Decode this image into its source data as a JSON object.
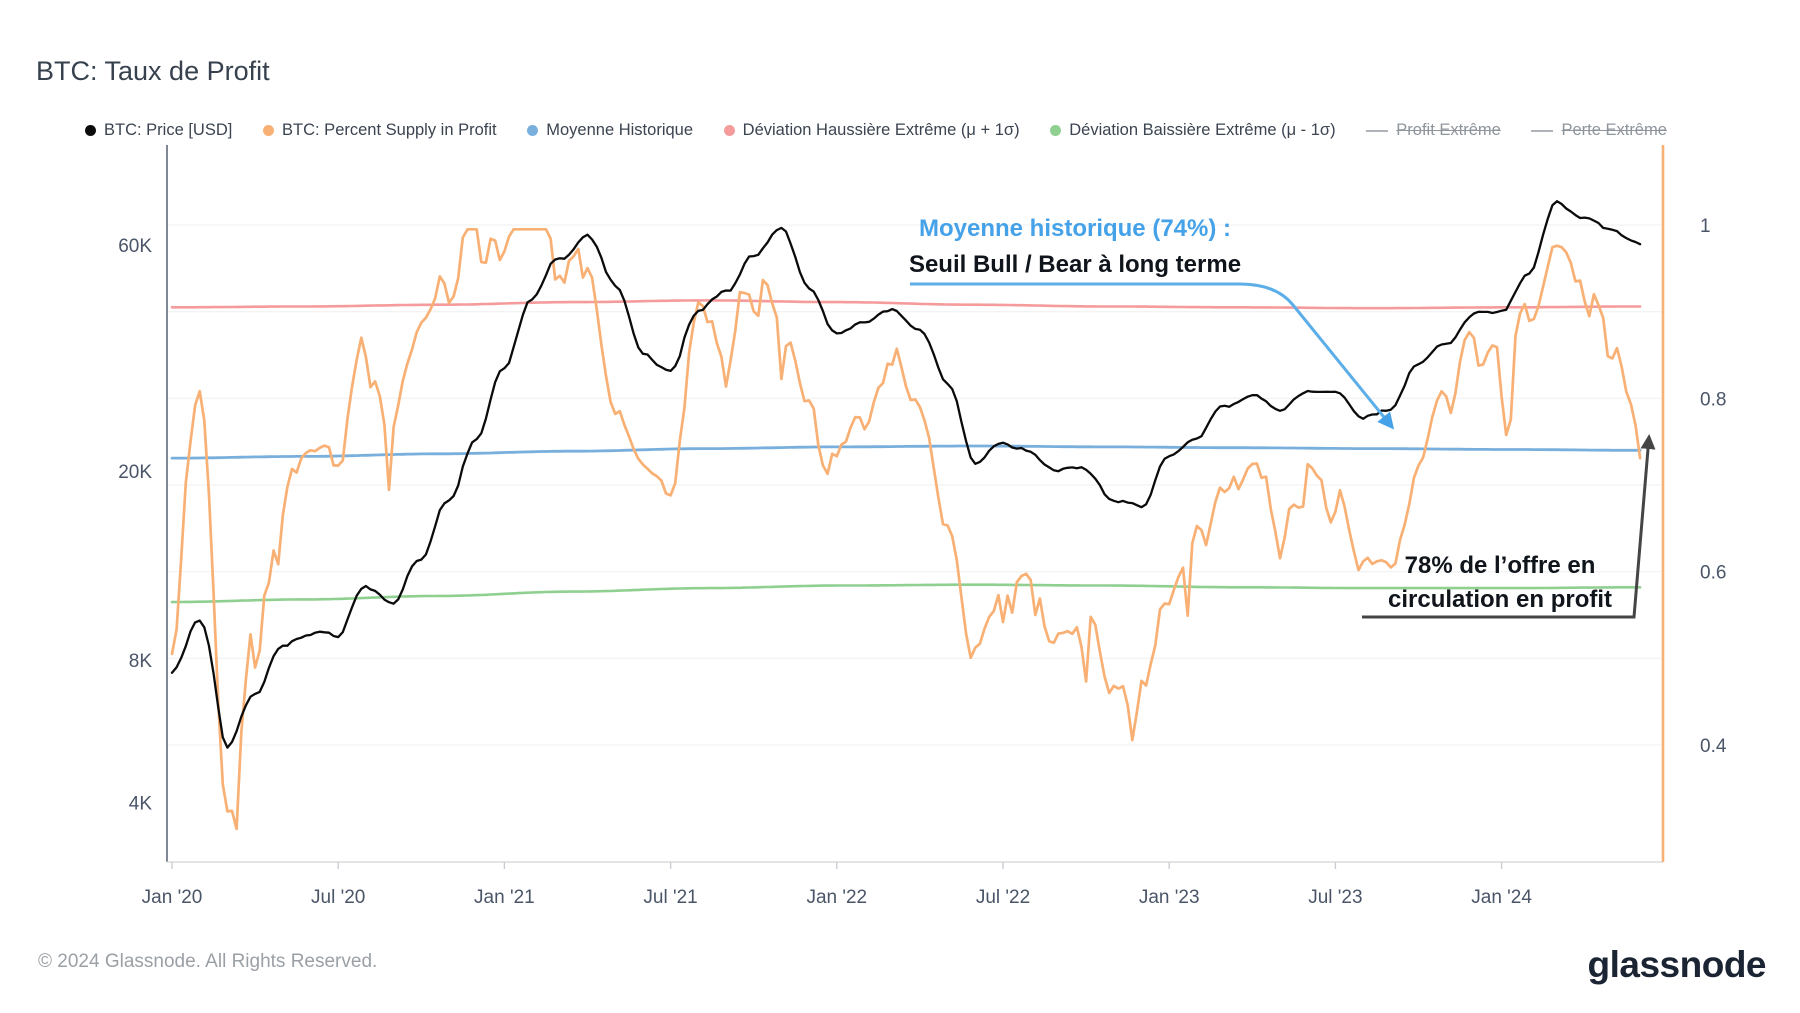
{
  "title": "BTC: Taux de Profit",
  "footer": {
    "copyright": "© 2024 Glassnode. All Rights Reserved.",
    "brand": "glassnode"
  },
  "colors": {
    "price": "#0b0b0b",
    "supply": "#f8b074",
    "mean": "#79afdc",
    "upper": "#f59b9b",
    "lower": "#8fcf90",
    "annotation_blue": "#45a2e9",
    "annotation_dark": "#454545",
    "grid": "#efefef",
    "axis_text": "#4a5568",
    "axis_line": "#4a5568",
    "bottom_line": "#dcdcdc",
    "disabled": "#9e9e9e"
  },
  "legend": [
    {
      "name": "btc-price",
      "label": "BTC: Price [USD]",
      "color": "#0b0b0b",
      "type": "dot",
      "enabled": true
    },
    {
      "name": "percent-supply-in-profit",
      "label": "BTC: Percent Supply in Profit",
      "color": "#f8b074",
      "type": "dot",
      "enabled": true
    },
    {
      "name": "moyenne-historique",
      "label": "Moyenne Historique",
      "color": "#79afdc",
      "type": "dot",
      "enabled": true
    },
    {
      "name": "deviation-haussiere",
      "label": "Déviation Haussière Extrême (μ + 1σ)",
      "color": "#f59b9b",
      "type": "dot",
      "enabled": true
    },
    {
      "name": "deviation-baissiere",
      "label": "Déviation Baissière Extrême (μ - 1σ)",
      "color": "#8fcf90",
      "type": "dot",
      "enabled": true
    },
    {
      "name": "profit-extreme",
      "label": "Profit Extrême",
      "color": "#b0b4ba",
      "type": "line",
      "enabled": false
    },
    {
      "name": "perte-extreme",
      "label": "Perte Extrême",
      "color": "#b0b4ba",
      "type": "line",
      "enabled": false
    }
  ],
  "annotations": {
    "mean": {
      "line1": "Moyenne historique (74%) :",
      "line2": "Seuil Bull / Bear à long terme"
    },
    "supply": {
      "line1": "78% de l’offre en",
      "line2": "circulation en profit"
    }
  },
  "chart_data": {
    "type": "line",
    "title": "BTC: Taux de Profit",
    "x_unit": "months since Jan 2020",
    "x_ticks": [
      {
        "label": "Jan '20",
        "m": 0
      },
      {
        "label": "Jul '20",
        "m": 6
      },
      {
        "label": "Jan '21",
        "m": 12
      },
      {
        "label": "Jul '21",
        "m": 18
      },
      {
        "label": "Jan '22",
        "m": 24
      },
      {
        "label": "Jul '22",
        "m": 30
      },
      {
        "label": "Jan '23",
        "m": 36
      },
      {
        "label": "Jul '23",
        "m": 42
      },
      {
        "label": "Jan '24",
        "m": 48
      }
    ],
    "left_axis": {
      "scale": "log",
      "unit": "USD",
      "ticks": [
        {
          "label": "60K",
          "value": 60000
        },
        {
          "label": "20K",
          "value": 20000
        },
        {
          "label": "8K",
          "value": 8000
        },
        {
          "label": "4K",
          "value": 4000
        }
      ]
    },
    "right_axis": {
      "scale": "linear",
      "unit": "ratio",
      "range": [
        0.265,
        1.09
      ],
      "grid_step": 0.1,
      "ticks": [
        {
          "label": "1",
          "value": 1.0
        },
        {
          "label": "0.8",
          "value": 0.8
        },
        {
          "label": "0.6",
          "value": 0.6
        },
        {
          "label": "0.4",
          "value": 0.4
        }
      ]
    },
    "series": [
      {
        "name": "BTC: Price [USD]",
        "axis": "left",
        "color": "#0b0b0b",
        "width": 2.3,
        "step_months": 1,
        "noise": {
          "seed": 42,
          "amp1": 0.018,
          "amp2": 0.007,
          "spike": 0,
          "log": true
        },
        "values": [
          7400,
          9600,
          5200,
          6900,
          8800,
          9400,
          9200,
          11600,
          10600,
          13200,
          17500,
          23500,
          32500,
          46000,
          55000,
          62000,
          49000,
          35500,
          32500,
          44000,
          47500,
          57000,
          66000,
          49500,
          39000,
          41500,
          44500,
          41000,
          31000,
          20500,
          22500,
          21500,
          19500,
          19800,
          16500,
          16800,
          21500,
          23800,
          27500,
          29000,
          27200,
          30200,
          29800,
          26500,
          27000,
          34000,
          37500,
          43500,
          42500,
          50500,
          71000,
          66000,
          62500,
          59500
        ]
      },
      {
        "name": "BTC: Percent Supply in Profit",
        "axis": "right",
        "color": "#f8b074",
        "width": 2.7,
        "step_months": 1,
        "noise": {
          "seed": 7,
          "amp1": 0.045,
          "amp2": 0.02,
          "spike": 0.11,
          "log": false
        },
        "values": [
          0.63,
          0.8,
          0.33,
          0.58,
          0.7,
          0.73,
          0.74,
          0.88,
          0.78,
          0.9,
          0.96,
          0.97,
          0.96,
          0.97,
          0.97,
          0.95,
          0.78,
          0.7,
          0.68,
          0.89,
          0.84,
          0.95,
          0.93,
          0.83,
          0.76,
          0.78,
          0.85,
          0.77,
          0.62,
          0.5,
          0.56,
          0.58,
          0.51,
          0.53,
          0.44,
          0.46,
          0.56,
          0.65,
          0.68,
          0.71,
          0.66,
          0.71,
          0.72,
          0.61,
          0.63,
          0.73,
          0.82,
          0.88,
          0.86,
          0.92,
          0.98,
          0.94,
          0.87,
          0.78
        ]
      },
      {
        "name": "Moyenne Historique",
        "axis": "right",
        "color": "#79afdc",
        "width": 2.8,
        "step_months": 4.8182,
        "noise": {
          "seed": 1,
          "amp1": 0,
          "amp2": 0,
          "spike": 0,
          "log": false
        },
        "values": [
          0.731,
          0.733,
          0.736,
          0.739,
          0.742,
          0.744,
          0.745,
          0.744,
          0.743,
          0.742,
          0.741,
          0.74
        ]
      },
      {
        "name": "Déviation Haussière Extrême (μ + 1σ)",
        "axis": "right",
        "color": "#f59b9b",
        "width": 2.6,
        "step_months": 4.8182,
        "noise": {
          "seed": 2,
          "amp1": 0,
          "amp2": 0,
          "spike": 0,
          "log": false
        },
        "values": [
          0.905,
          0.906,
          0.908,
          0.911,
          0.913,
          0.911,
          0.908,
          0.906,
          0.905,
          0.904,
          0.905,
          0.906
        ]
      },
      {
        "name": "Déviation Baissière Extrême (μ - 1σ)",
        "axis": "right",
        "color": "#8fcf90",
        "width": 2.6,
        "step_months": 4.8182,
        "noise": {
          "seed": 3,
          "amp1": 0,
          "amp2": 0,
          "spike": 0,
          "log": false
        },
        "values": [
          0.565,
          0.568,
          0.572,
          0.577,
          0.581,
          0.584,
          0.585,
          0.584,
          0.582,
          0.581,
          0.581,
          0.582
        ]
      }
    ],
    "callouts": [
      {
        "text": "Moyenne historique (74%) : Seuil Bull / Bear à long terme",
        "points_to": "Moyenne Historique"
      },
      {
        "text": "78% de l’offre en circulation en profit",
        "points_to": "BTC: Percent Supply in Profit",
        "value": 0.78
      }
    ]
  }
}
